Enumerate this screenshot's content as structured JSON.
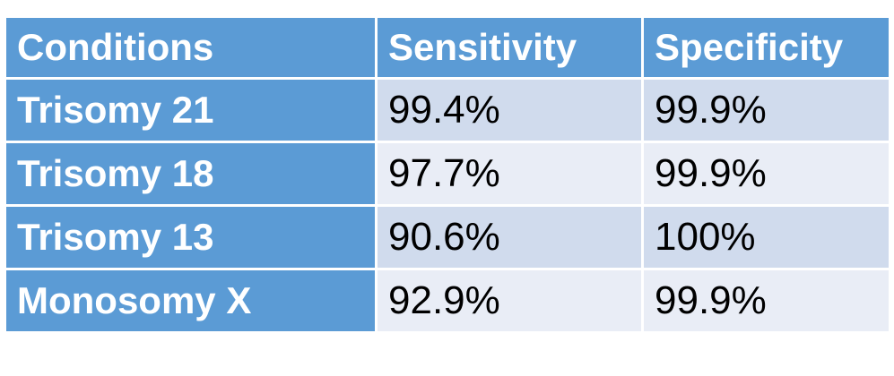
{
  "table": {
    "header": [
      "Conditions",
      "Sensitivity",
      "Specificity"
    ],
    "rows": [
      [
        "Trisomy 21",
        "99.4%",
        "99.9%"
      ],
      [
        "Trisomy 18",
        "97.7%",
        "99.9%"
      ],
      [
        "Trisomy 13",
        "90.6%",
        "100%"
      ],
      [
        "Monosomy X",
        "92.9%",
        "99.9%"
      ]
    ]
  }
}
